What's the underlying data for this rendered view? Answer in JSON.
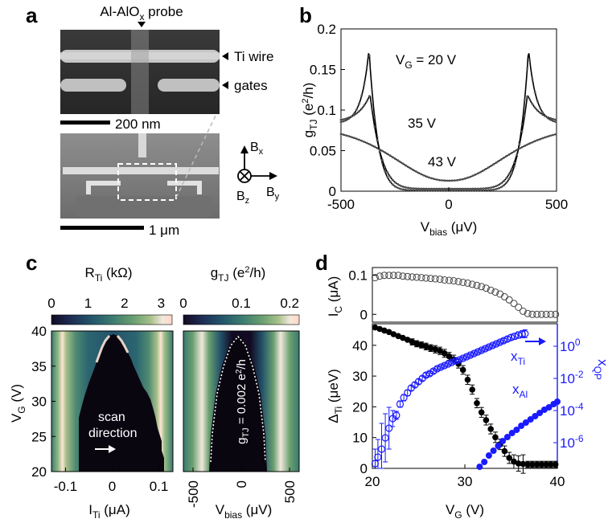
{
  "panel_letters": {
    "a": "a",
    "b": "b",
    "c": "c",
    "d": "d"
  },
  "colors": {
    "blue": "#1a1aff",
    "black": "#000000",
    "gray_marker": "#444444",
    "colormap": [
      "#120a22",
      "#1e2a52",
      "#22526a",
      "#3b7a70",
      "#69a070",
      "#a8c08a",
      "#f2e8dc",
      "#ffd6c6"
    ]
  },
  "panel_a": {
    "probe_label": "Al-AlOx probe",
    "ti_wire_label": "Ti wire",
    "gates_label": "gates",
    "scale_top": "200 nm",
    "scale_bottom": "1 μm",
    "axes": {
      "bx": "Bx",
      "by": "By",
      "bz": "Bz"
    },
    "icons": [
      "probe-arrow-icon",
      "ti-wire-arrow-icon",
      "gates-arrow-icon",
      "bz-into-page-icon"
    ]
  },
  "chart_data": [
    {
      "id": "b",
      "type": "line",
      "xlabel": "Vbias (μV)",
      "ylabel": "gTJ (e²/h)",
      "xlim": [
        -500,
        500
      ],
      "ylim": [
        0,
        0.2
      ],
      "xticks": [
        "-500",
        "0",
        "500"
      ],
      "yticks": [
        "0",
        "0.05",
        "0.1",
        "0.15",
        "0.2"
      ],
      "annotations": [
        "VG = 20 V",
        "35 V",
        "43 V"
      ],
      "series": [
        {
          "peak_x": 370,
          "peak_y": 0.175,
          "edge_y": 0.083,
          "gap_y": 0.001
        },
        {
          "peak_x": 365,
          "peak_y": 0.119,
          "edge_y": 0.085,
          "gap_y": 0.003
        },
        {
          "peak_x": 0,
          "peak_y": 0.082,
          "edge_y": 0.082,
          "gap_y": 0.013
        }
      ]
    },
    {
      "id": "c-left",
      "type": "heatmap",
      "title": "RTi (kΩ)",
      "colorbar_ticks": [
        "0",
        "1",
        "2",
        "3"
      ],
      "colorbar_range": [
        0,
        3.3
      ],
      "xlabel": "ITi (μA)",
      "ylabel": "VG (V)",
      "xlim": [
        -0.13,
        0.13
      ],
      "ylim": [
        20,
        40
      ],
      "xticks": [
        "-0.1",
        "0",
        "0.1"
      ],
      "yticks": [
        "20",
        "25",
        "30",
        "35",
        "40"
      ],
      "annotations": [
        "scan",
        "direction"
      ]
    },
    {
      "id": "c-right",
      "type": "heatmap",
      "title": "gTJ (e²/h)",
      "colorbar_ticks": [
        "0",
        "0.1",
        "0.2"
      ],
      "colorbar_range": [
        0,
        0.2
      ],
      "xlabel": "Vbias (μV)",
      "xlim": [
        -600,
        600
      ],
      "ylim": [
        20,
        40
      ],
      "xticks": [
        "-500",
        "0",
        "500"
      ],
      "annotations": [
        "gTJ = 0.002 e²/h"
      ]
    },
    {
      "id": "d-top",
      "type": "scatter",
      "ylabel": "IC (μA)",
      "xlim": [
        20,
        40
      ],
      "ylim": [
        -0.02,
        0.12
      ],
      "yticks": [
        "0",
        "0.1"
      ],
      "x": [
        20.3,
        20.8,
        21.3,
        21.8,
        22.3,
        22.8,
        23.3,
        23.8,
        24.3,
        24.8,
        25.3,
        25.8,
        26.3,
        26.8,
        27.3,
        27.8,
        28.3,
        28.8,
        29.3,
        29.8,
        30.3,
        30.8,
        31.3,
        31.8,
        32.3,
        32.8,
        33.3,
        33.8,
        34.3,
        34.8,
        35.3,
        35.8,
        36.3,
        36.8,
        37.3,
        37.8,
        38.3,
        38.8,
        39.3,
        39.8
      ],
      "y": [
        0.094,
        0.098,
        0.1,
        0.1,
        0.1,
        0.1,
        0.098,
        0.097,
        0.096,
        0.095,
        0.094,
        0.093,
        0.092,
        0.091,
        0.09,
        0.088,
        0.087,
        0.086,
        0.084,
        0.082,
        0.08,
        0.077,
        0.074,
        0.071,
        0.067,
        0.062,
        0.057,
        0.052,
        0.045,
        0.037,
        0.028,
        0.018,
        0.008,
        0.002,
        0,
        0,
        0,
        0,
        0,
        0
      ]
    },
    {
      "id": "d-bottom",
      "type": "scatter",
      "ylabel": "ΔTi (μeV)",
      "right_ylabel": "xQP",
      "xlabel": "VG (V)",
      "xlim": [
        20,
        40
      ],
      "ylim": [
        0,
        47
      ],
      "right_ylim_log10": [
        -7.6,
        1.4
      ],
      "xticks": [
        "20",
        "30",
        "40"
      ],
      "yticks": [
        "0",
        "10",
        "20",
        "30",
        "40"
      ],
      "right_yticks": [
        "10-6",
        "10-4",
        "10-2",
        "100"
      ],
      "series": [
        {
          "name": "ΔTi",
          "x": [
            20.3,
            20.8,
            21.3,
            21.8,
            22.3,
            22.8,
            23.3,
            23.8,
            24.3,
            24.8,
            25.3,
            25.8,
            26.3,
            26.8,
            27.3,
            27.8,
            28.3,
            28.8,
            29.3,
            29.8,
            30.3,
            30.8,
            31.3,
            31.8,
            32.3,
            32.8,
            33.3,
            33.8,
            34.3,
            34.8,
            35.3,
            35.8,
            36.3,
            36.8,
            37.3,
            37.8,
            38.3,
            38.8,
            39.3,
            39.8
          ],
          "y": [
            45.8,
            45.3,
            44.8,
            44.3,
            43.6,
            43.0,
            42.4,
            41.8,
            41.1,
            40.5,
            40.1,
            39.6,
            39.1,
            38.7,
            38.2,
            37.4,
            36.4,
            35.4,
            34.0,
            32.0,
            28.8,
            25.6,
            21.2,
            18.2,
            15.7,
            12.8,
            10.1,
            7.8,
            5.6,
            3.4,
            2.2,
            1.6,
            1.4,
            1.3,
            1.3,
            1.3,
            1.3,
            1.3,
            1.3,
            1.3
          ],
          "err": [
            0.6,
            0.6,
            0.7,
            0.7,
            0.8,
            0.8,
            0.9,
            0.9,
            1.0,
            1.0,
            1.0,
            1.1,
            1.1,
            1.2,
            1.2,
            1.3,
            1.3,
            1.4,
            1.4,
            1.4,
            1.5,
            1.5,
            1.5,
            1.6,
            1.6,
            1.6,
            1.7,
            1.7,
            1.7,
            1.8,
            2.2,
            2.5,
            3.0,
            1.0,
            1.0,
            1.0,
            1.0,
            1.0,
            1.0,
            1.0
          ]
        },
        {
          "name": "xTi",
          "x": [
            20.3,
            20.6,
            21.0,
            21.4,
            21.8,
            22.2,
            22.6,
            23.0,
            23.4,
            23.8,
            24.2,
            24.6,
            25.0,
            25.4,
            25.8,
            26.2,
            26.6,
            27.0,
            27.4,
            27.8,
            28.2,
            28.6,
            29.0,
            29.4,
            29.8,
            30.2,
            30.6,
            31.0,
            31.4,
            31.8,
            32.2,
            32.6,
            33.0,
            33.4,
            33.8,
            34.2,
            34.6,
            35.0,
            35.4,
            35.8,
            36.2,
            36.5
          ],
          "log10_y": [
            -7.3,
            -6.9,
            -6.4,
            -5.7,
            -5.1,
            -4.5,
            -4.3,
            -3.6,
            -3.2,
            -2.9,
            -2.6,
            -2.4,
            -2.2,
            -2.0,
            -1.8,
            -1.7,
            -1.55,
            -1.4,
            -1.3,
            -1.2,
            -1.1,
            -1.0,
            -0.9,
            -0.85,
            -0.75,
            -0.65,
            -0.55,
            -0.45,
            -0.35,
            -0.25,
            -0.15,
            -0.05,
            0.05,
            0.15,
            0.25,
            0.35,
            0.45,
            0.55,
            0.62,
            0.7,
            0.75,
            0.78
          ],
          "log10_err": [
            0.9,
            1.1,
            1.6,
            1.5,
            1.3,
            0.5,
            0.25,
            0.2,
            0.2,
            0.18,
            0.15,
            0.15,
            0.15,
            0.14,
            0.13,
            0.12,
            0.12,
            0.11,
            0.1,
            0.1,
            0.1,
            0.1,
            0.1,
            0.1,
            0.1,
            0.1,
            0.1,
            0.1,
            0.1,
            0.1,
            0.1,
            0.1,
            0.1,
            0.1,
            0.1,
            0.12,
            0.14,
            0.16,
            0.18,
            0.2,
            0.22,
            0.25
          ]
        },
        {
          "name": "xAl",
          "x": [
            31.6,
            32.1,
            32.6,
            33.1,
            33.6,
            34.1,
            34.6,
            35.1,
            35.6,
            36.1,
            36.6,
            37.1,
            37.6,
            38.1,
            38.6,
            39.1,
            39.6,
            40.0
          ],
          "log10_y": [
            -7.5,
            -7.2,
            -6.8,
            -6.5,
            -6.2,
            -5.9,
            -5.65,
            -5.4,
            -5.2,
            -4.95,
            -4.75,
            -4.55,
            -4.35,
            -4.15,
            -3.95,
            -3.8,
            -3.6,
            -3.45
          ]
        }
      ]
    }
  ]
}
